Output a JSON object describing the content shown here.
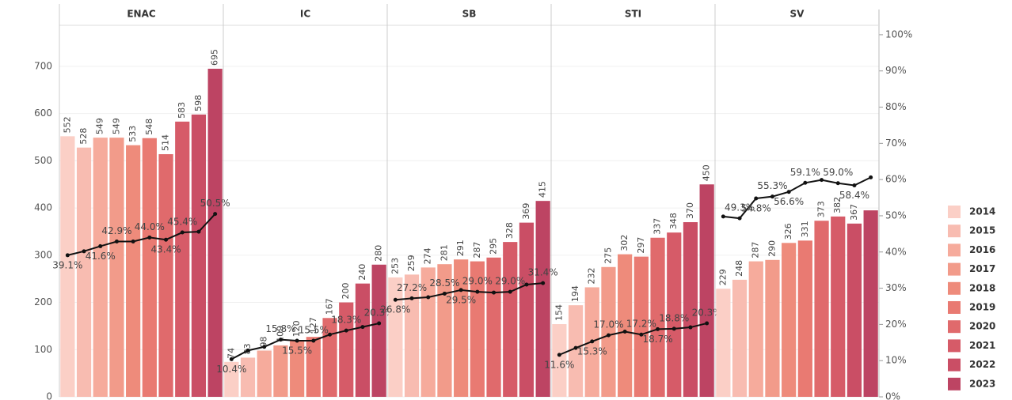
{
  "chart_data": {
    "type": "bar",
    "years": [
      "2014",
      "2015",
      "2016",
      "2017",
      "2018",
      "2019",
      "2020",
      "2021",
      "2022",
      "2023"
    ],
    "colors": [
      "#fbcfc6",
      "#f8bcb1",
      "#f6ab9c",
      "#f29b8a",
      "#ee8b7b",
      "#e97a72",
      "#e06a6c",
      "#d65b68",
      "#ca4e65",
      "#bd4463"
    ],
    "line_color": "#111111",
    "ylim": [
      0,
      787
    ],
    "yticks": [
      0,
      100,
      200,
      300,
      400,
      500,
      600,
      700
    ],
    "y2lim": [
      0,
      102.6
    ],
    "y2ticks": [
      {
        "value": 0,
        "label": "0%"
      },
      {
        "value": 10,
        "label": "10%"
      },
      {
        "value": 20,
        "label": "20%"
      },
      {
        "value": 30,
        "label": "30%"
      },
      {
        "value": 40,
        "label": "40%"
      },
      {
        "value": 50,
        "label": "50%"
      },
      {
        "value": 60,
        "label": "60%"
      },
      {
        "value": 70,
        "label": "70%"
      },
      {
        "value": 80,
        "label": "80%"
      },
      {
        "value": 90,
        "label": "90%"
      },
      {
        "value": 100,
        "label": "100%"
      }
    ],
    "grid": true,
    "panels": [
      {
        "name": "ENAC",
        "values": [
          552,
          528,
          549,
          549,
          533,
          548,
          514,
          583,
          598,
          695
        ],
        "line_values": [
          39.1,
          40.2,
          41.6,
          42.9,
          42.9,
          44.0,
          43.4,
          45.4,
          45.6,
          50.5
        ],
        "line_labels": [
          "39.1%",
          null,
          "41.6%",
          "42.9%",
          null,
          "44.0%",
          "43.4%",
          "45.4%",
          null,
          "50.5%"
        ]
      },
      {
        "name": "IC",
        "values": [
          74,
          83,
          98,
          109,
          120,
          127,
          167,
          200,
          240,
          280
        ],
        "line_values": [
          10.4,
          12.8,
          13.8,
          15.8,
          15.5,
          15.5,
          17.2,
          18.3,
          19.3,
          20.3
        ],
        "line_labels": [
          "10.4%",
          null,
          null,
          "15.8%",
          "15.5%",
          "15.5%",
          null,
          "18.3%",
          null,
          "20.3%"
        ]
      },
      {
        "name": "SB",
        "values": [
          253,
          259,
          274,
          281,
          291,
          287,
          295,
          328,
          369,
          415
        ],
        "line_values": [
          26.8,
          27.2,
          27.5,
          28.5,
          29.5,
          29.0,
          28.8,
          29.0,
          31.0,
          31.4
        ],
        "line_labels": [
          "26.8%",
          "27.2%",
          null,
          "28.5%",
          "29.5%",
          "29.0%",
          null,
          "29.0%",
          null,
          "31.4%"
        ]
      },
      {
        "name": "STI",
        "values": [
          154,
          194,
          232,
          275,
          302,
          297,
          337,
          348,
          370,
          450
        ],
        "line_values": [
          11.6,
          13.5,
          15.3,
          17.0,
          18.0,
          17.2,
          18.7,
          18.8,
          19.2,
          20.3
        ],
        "line_labels": [
          "11.6%",
          null,
          "15.3%",
          "17.0%",
          null,
          "17.2%",
          "18.7%",
          "18.8%",
          null,
          "20.3%"
        ]
      },
      {
        "name": "SV",
        "values": [
          229,
          248,
          287,
          290,
          326,
          331,
          373,
          382,
          367,
          395
        ],
        "value_labels": [
          "229",
          "248",
          "287",
          "290",
          "326",
          "331",
          "373",
          "382",
          "367",
          null
        ],
        "line_values": [
          49.8,
          49.3,
          54.8,
          55.3,
          56.6,
          59.1,
          59.9,
          59.0,
          58.4,
          60.6
        ],
        "line_labels": [
          null,
          "49.3%",
          "54.8%",
          "55.3%",
          "56.6%",
          "59.1%",
          null,
          "59.0%",
          "58.4%",
          null
        ]
      }
    ]
  }
}
